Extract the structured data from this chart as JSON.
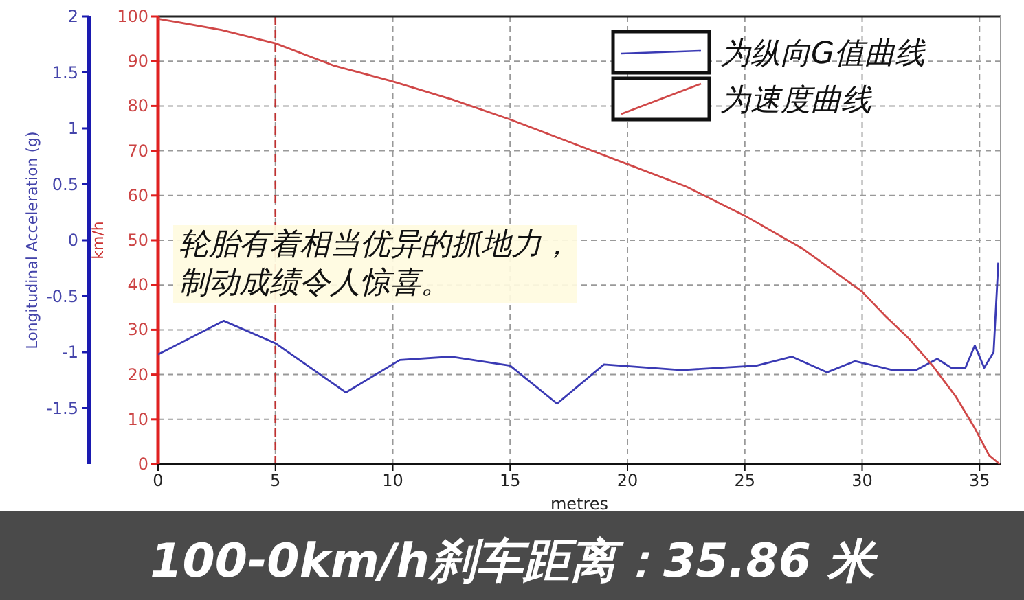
{
  "chart_data": {
    "type": "line",
    "title": "100-0km/h刹车距离：35.86 米",
    "xlabel": "metres",
    "ylabel": "Longitudinal Acceleration (g)",
    "y2label": "km/h",
    "annotations": [
      "轮胎有着相当优异的抓地力，制动成绩令人惊喜。"
    ],
    "xlim": [
      0,
      35.9
    ],
    "xticks": [
      0,
      5,
      10,
      15,
      20,
      25,
      30,
      35
    ],
    "ylim": [
      -2,
      2
    ],
    "yticks": [
      2,
      1.5,
      1,
      0.5,
      0,
      -0.5,
      -1,
      -1.5
    ],
    "y2lim": [
      0,
      100
    ],
    "y2ticks": [
      0,
      10,
      20,
      30,
      40,
      50,
      60,
      70,
      80,
      90,
      100
    ],
    "grid": true,
    "legend": "top right",
    "ref_lines": [
      {
        "axis": "x",
        "value": 5,
        "color": "#c03030",
        "line_style": "dashed"
      }
    ],
    "series": [
      {
        "name": "为纵向G值曲线",
        "color": "#3a3ab4",
        "axis": "y",
        "x": [
          0,
          2.8,
          5,
          8,
          10.3,
          12.5,
          15,
          17,
          19,
          22.3,
          25.5,
          27,
          28.5,
          29.7,
          31.3,
          32.3,
          33.2,
          33.8,
          34.4,
          34.8,
          35.2,
          35.6,
          35.8
        ],
        "values": [
          -1.02,
          -0.72,
          -0.92,
          -1.36,
          -1.07,
          -1.04,
          -1.12,
          -1.46,
          -1.11,
          -1.16,
          -1.12,
          -1.04,
          -1.18,
          -1.08,
          -1.16,
          -1.16,
          -1.06,
          -1.14,
          -1.14,
          -0.94,
          -1.14,
          -1.0,
          -0.2
        ]
      },
      {
        "name": "为速度曲线",
        "color": "#d04848",
        "axis": "y2",
        "x": [
          0,
          2.7,
          5,
          7.5,
          10,
          12.5,
          15,
          17.5,
          20,
          22.5,
          25,
          27.5,
          30,
          31,
          32,
          33,
          34,
          34.8,
          35.4,
          35.86
        ],
        "values": [
          99.5,
          97,
          94,
          89,
          85.5,
          81.5,
          77,
          72,
          67,
          62,
          55.5,
          48,
          38.5,
          33,
          28,
          22,
          15,
          8,
          2,
          0
        ]
      }
    ]
  }
}
